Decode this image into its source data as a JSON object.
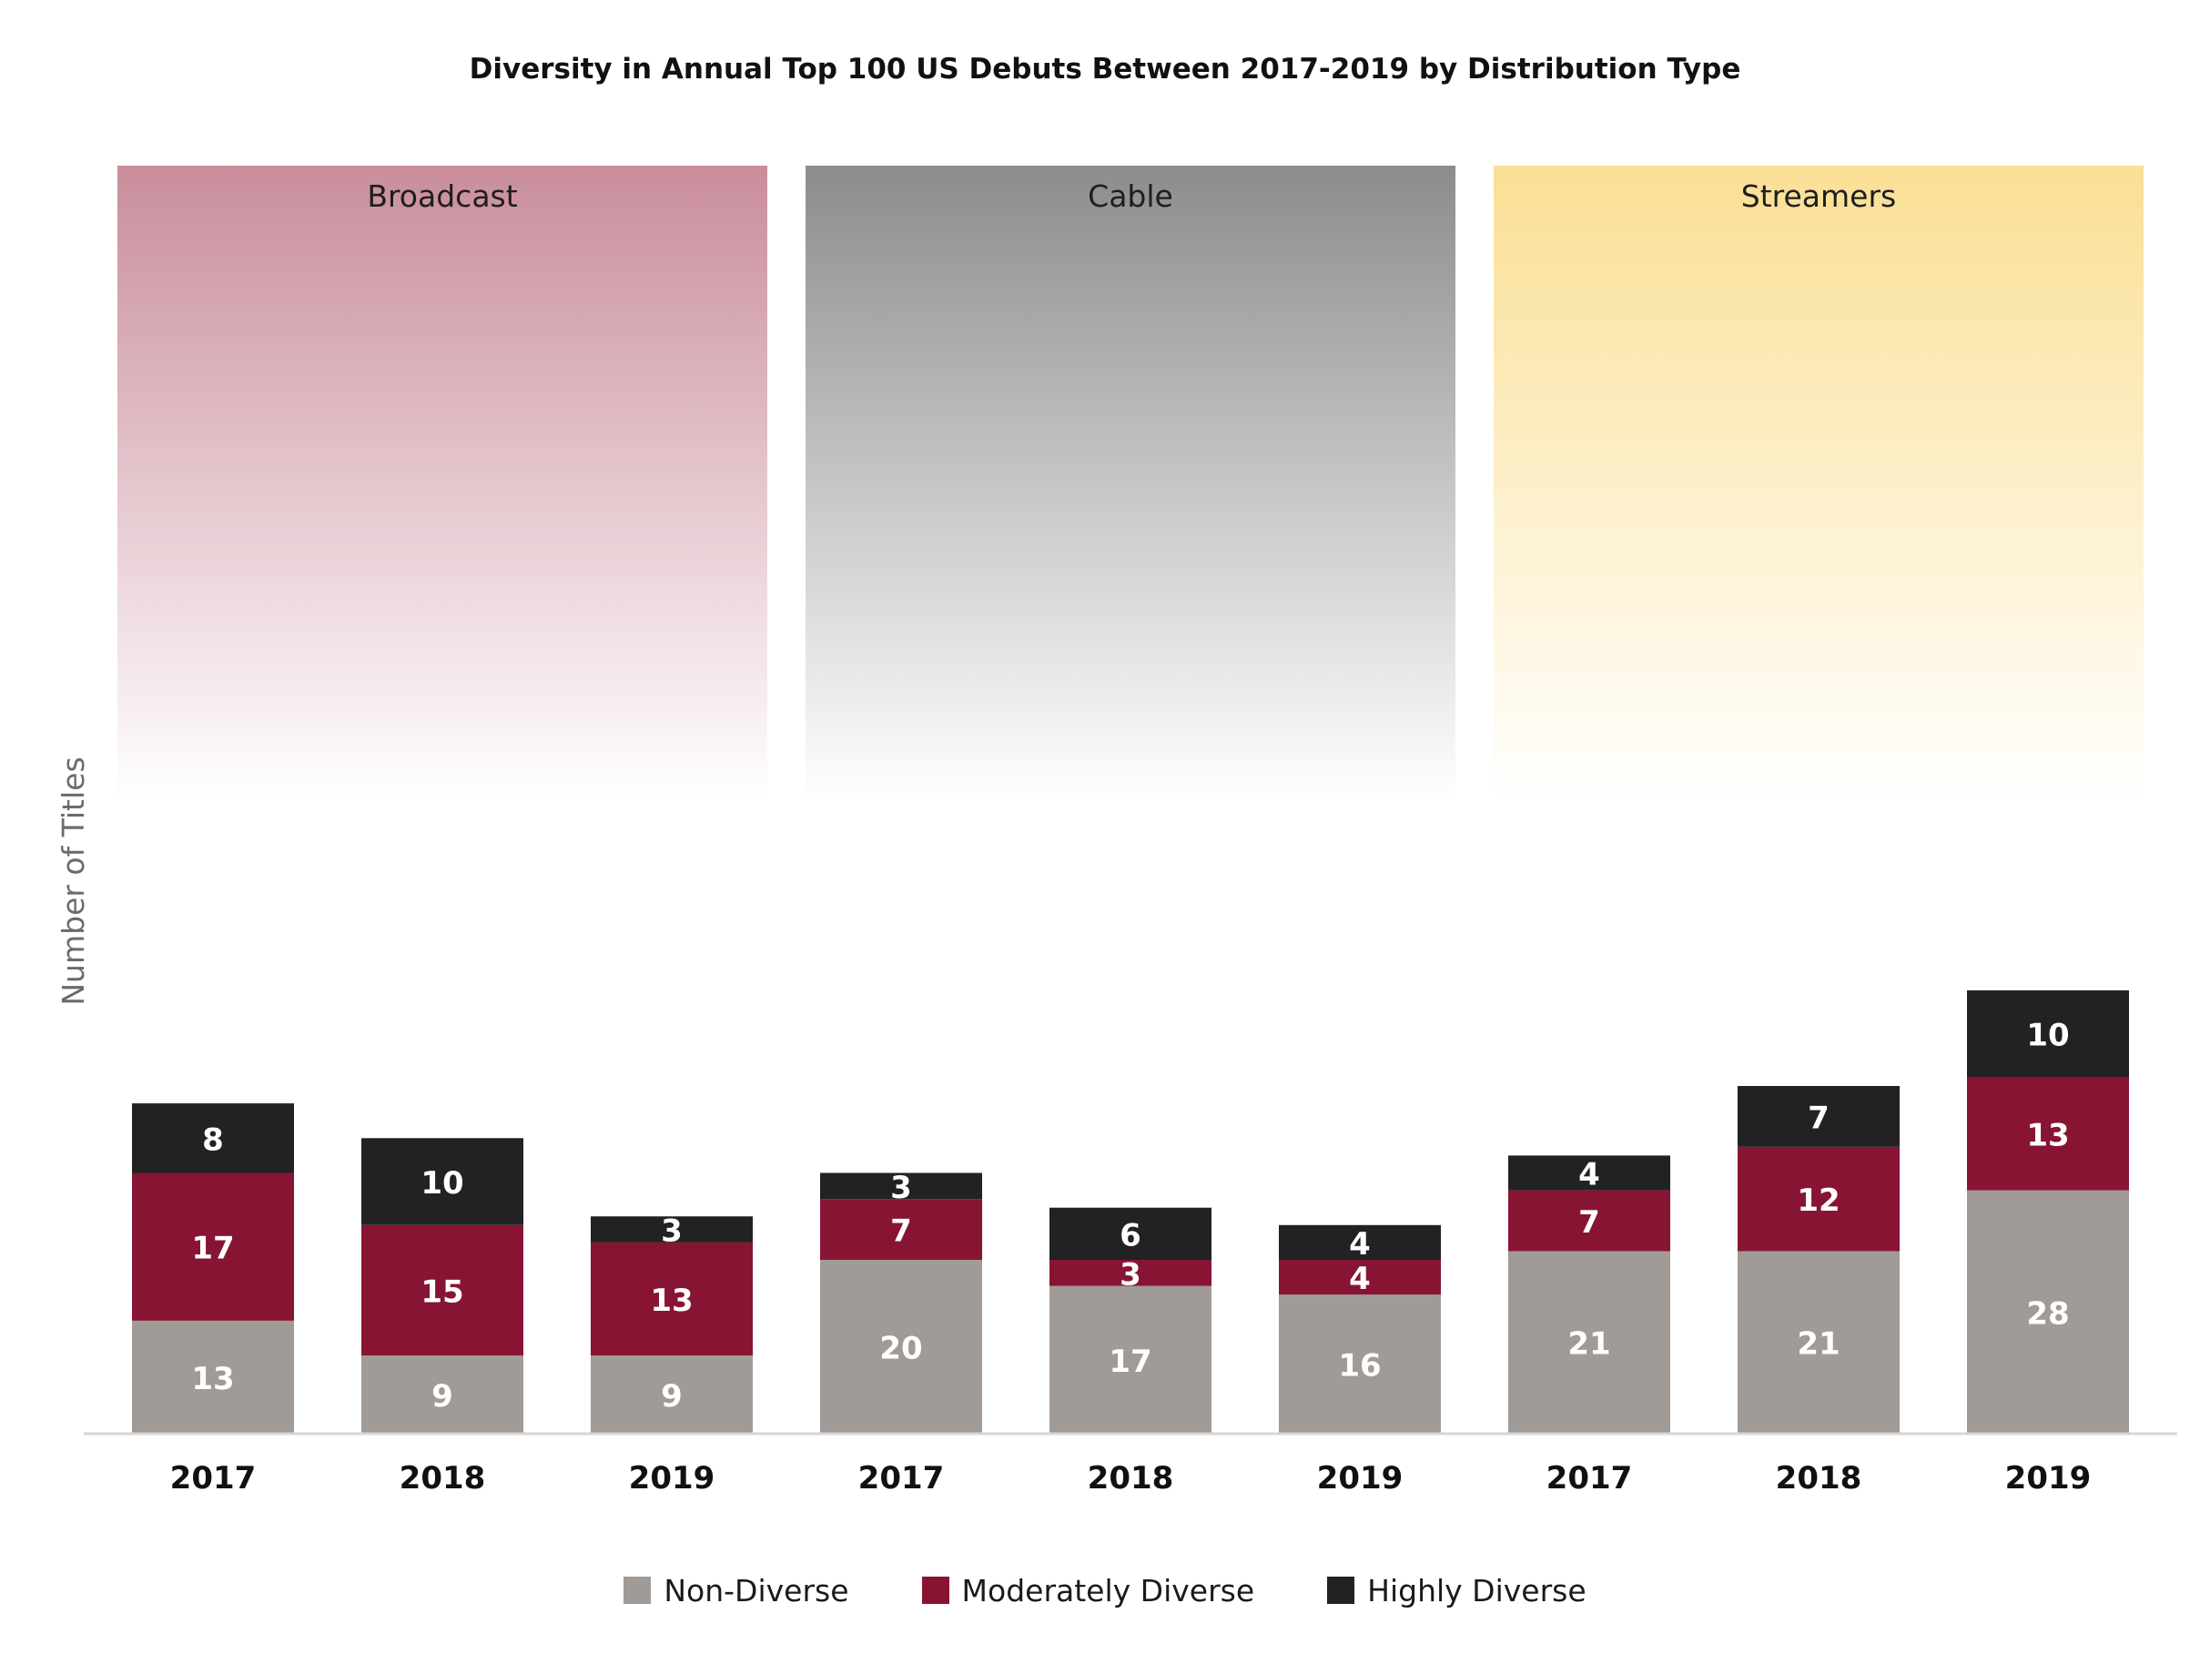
{
  "chart_data": {
    "type": "bar",
    "stacked": true,
    "title": "Diversity in Annual Top 100 US Debuts Between 2017-2019 by Distribution Type",
    "ylabel": "Number of Titles",
    "xlabel": "",
    "ylim": [
      0,
      58
    ],
    "grid": false,
    "legend_position": "bottom",
    "groups": [
      {
        "name": "Broadcast",
        "categories": [
          "2017",
          "2018",
          "2019"
        ]
      },
      {
        "name": "Cable",
        "categories": [
          "2017",
          "2018",
          "2019"
        ]
      },
      {
        "name": "Streamers",
        "categories": [
          "2017",
          "2018",
          "2019"
        ]
      }
    ],
    "series": [
      {
        "name": "Non-Diverse",
        "color": "#a09b97",
        "values": [
          13,
          9,
          9,
          20,
          17,
          16,
          21,
          21,
          28
        ]
      },
      {
        "name": "Moderately Diverse",
        "color": "#881433",
        "values": [
          17,
          15,
          13,
          7,
          3,
          4,
          7,
          12,
          13
        ]
      },
      {
        "name": "Highly Diverse",
        "color": "#222222",
        "values": [
          8,
          10,
          3,
          3,
          6,
          4,
          4,
          7,
          10
        ]
      }
    ],
    "group_colors": [
      "#c98d9b",
      "#8c8c8c",
      "#fadf94"
    ]
  }
}
